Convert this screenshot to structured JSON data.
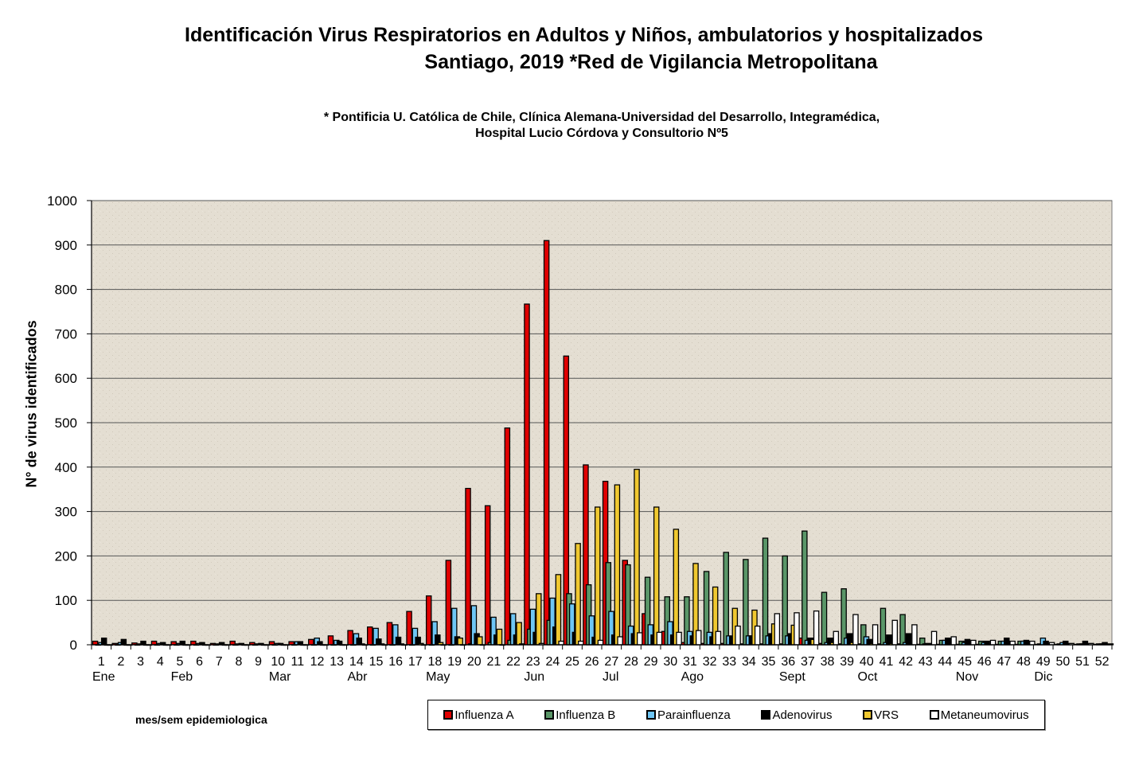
{
  "header": {
    "title_line1": "Identificación Virus Respiratorios en Adultos y Niños, ambulatorios y hospitalizados",
    "title_line2": "Santiago, 2019  *Red de Vigilancia Metropolitana",
    "subtitle_line1": "* Pontificia U. Católica de Chile, Clínica Alemana-Universidad del Desarrollo, Integramédica,",
    "subtitle_line2": "Hospital Lucio Córdova y Consultorio Nº5"
  },
  "chart_data": {
    "type": "bar",
    "title": "Identificación Virus Respiratorios en Adultos y Niños, ambulatorios y hospitalizados Santiago, 2019 *Red de Vigilancia Metropolitana",
    "xlabel": "mes/sem  epidemiologica",
    "ylabel": "N° de virus identificados",
    "ylim": [
      0,
      1000
    ],
    "yticks": [
      0,
      100,
      200,
      300,
      400,
      500,
      600,
      700,
      800,
      900,
      1000
    ],
    "grid": true,
    "legend_position": "bottom",
    "categories": [
      "1",
      "2",
      "3",
      "4",
      "5",
      "6",
      "7",
      "8",
      "9",
      "10",
      "11",
      "12",
      "13",
      "14",
      "15",
      "16",
      "17",
      "18",
      "19",
      "20",
      "21",
      "22",
      "23",
      "24",
      "25",
      "26",
      "27",
      "28",
      "29",
      "30",
      "31",
      "32",
      "33",
      "34",
      "35",
      "36",
      "37",
      "38",
      "39",
      "40",
      "41",
      "42",
      "43",
      "44",
      "45",
      "46",
      "47",
      "48",
      "49",
      "50",
      "51",
      "52"
    ],
    "month_labels": [
      {
        "week": 1,
        "label": "Ene"
      },
      {
        "week": 5,
        "label": "Feb"
      },
      {
        "week": 10,
        "label": "Mar"
      },
      {
        "week": 14,
        "label": "Abr"
      },
      {
        "week": 18,
        "label": "May"
      },
      {
        "week": 23,
        "label": "Jun"
      },
      {
        "week": 27,
        "label": "Jul"
      },
      {
        "week": 31,
        "label": "Ago"
      },
      {
        "week": 36,
        "label": "Sept"
      },
      {
        "week": 40,
        "label": "Oct"
      },
      {
        "week": 45,
        "label": "Nov"
      },
      {
        "week": 49,
        "label": "Dic"
      }
    ],
    "series": [
      {
        "name": "Influenza A",
        "color": "#e00000",
        "values": [
          8,
          3,
          4,
          8,
          7,
          8,
          3,
          8,
          5,
          7,
          7,
          12,
          20,
          32,
          40,
          50,
          75,
          110,
          190,
          352,
          313,
          488,
          767,
          910,
          650,
          405,
          368,
          190,
          70,
          30,
          5,
          3,
          3,
          2,
          2,
          2,
          15,
          3,
          2,
          2,
          2,
          2,
          1,
          1,
          1,
          1,
          1,
          1,
          1,
          1,
          1,
          1
        ]
      },
      {
        "name": "Influenza B",
        "color": "#5a9668",
        "values": [
          0,
          0,
          0,
          0,
          0,
          0,
          0,
          0,
          0,
          0,
          0,
          0,
          0,
          0,
          0,
          0,
          0,
          0,
          0,
          2,
          5,
          10,
          35,
          55,
          115,
          135,
          185,
          180,
          152,
          108,
          108,
          165,
          208,
          192,
          240,
          200,
          256,
          118,
          126,
          45,
          82,
          68,
          15,
          10,
          8,
          8,
          8,
          8,
          2,
          2,
          2,
          2
        ]
      },
      {
        "name": "Parainfluenza",
        "color": "#6ec6f5",
        "values": [
          5,
          5,
          2,
          3,
          3,
          3,
          2,
          2,
          2,
          3,
          7,
          15,
          10,
          25,
          37,
          45,
          37,
          52,
          82,
          88,
          62,
          70,
          80,
          105,
          92,
          65,
          75,
          42,
          45,
          52,
          30,
          28,
          20,
          20,
          20,
          20,
          10,
          5,
          15,
          18,
          5,
          5,
          2,
          10,
          5,
          5,
          8,
          8,
          15,
          5,
          2,
          2
        ]
      },
      {
        "name": "Adenovirus",
        "color": "#000000",
        "values": [
          15,
          12,
          8,
          5,
          8,
          5,
          5,
          3,
          3,
          3,
          7,
          7,
          8,
          15,
          13,
          17,
          17,
          22,
          18,
          25,
          22,
          22,
          28,
          40,
          28,
          17,
          22,
          25,
          22,
          22,
          20,
          18,
          18,
          20,
          25,
          25,
          15,
          15,
          25,
          12,
          22,
          25,
          3,
          15,
          12,
          8,
          15,
          10,
          8,
          8,
          8,
          5
        ]
      },
      {
        "name": "VRS",
        "color": "#f0c830",
        "values": [
          0,
          0,
          0,
          0,
          0,
          0,
          0,
          0,
          0,
          0,
          0,
          0,
          0,
          2,
          2,
          2,
          3,
          5,
          15,
          18,
          35,
          50,
          115,
          158,
          228,
          310,
          360,
          395,
          310,
          260,
          183,
          130,
          82,
          78,
          47,
          44,
          12,
          5,
          5,
          3,
          3,
          2,
          1,
          1,
          1,
          1,
          1,
          1,
          1,
          1,
          1,
          1
        ]
      },
      {
        "name": "Metaneumovirus",
        "color": "#ffffff",
        "values": [
          0,
          0,
          0,
          0,
          0,
          0,
          0,
          0,
          0,
          0,
          0,
          0,
          0,
          0,
          0,
          0,
          0,
          0,
          0,
          0,
          0,
          2,
          3,
          8,
          8,
          10,
          18,
          27,
          28,
          28,
          32,
          30,
          42,
          42,
          70,
          72,
          76,
          30,
          68,
          45,
          55,
          45,
          30,
          18,
          10,
          10,
          8,
          8,
          5,
          3,
          3,
          2
        ]
      }
    ]
  }
}
